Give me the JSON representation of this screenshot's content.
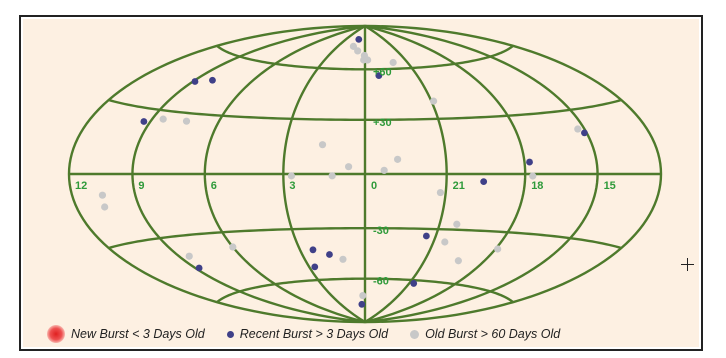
{
  "chart_data": {
    "type": "scatter",
    "projection": "aitoff-hammer",
    "grid_color": "#4e7a2c",
    "label_color": "#2f9a3a",
    "colors": {
      "new": "#e02020",
      "recent": "#3f4088",
      "old": "#c8c8c8"
    },
    "ra_tick_labels": [
      {
        "text": "12",
        "ra_h": 12
      },
      {
        "text": "9",
        "ra_h": 9
      },
      {
        "text": "6",
        "ra_h": 6
      },
      {
        "text": "3",
        "ra_h": 3
      },
      {
        "text": "0",
        "ra_h": 0
      },
      {
        "text": "21",
        "ra_h": 21
      },
      {
        "text": "18",
        "ra_h": 18
      },
      {
        "text": "15",
        "ra_h": 15
      }
    ],
    "dec_tick_labels": [
      {
        "text": "+60",
        "dec": 60
      },
      {
        "text": "+30",
        "dec": 30
      },
      {
        "text": "-30",
        "dec": -30
      },
      {
        "text": "-60",
        "dec": -60
      }
    ],
    "series": [
      {
        "name": "Recent Burst > 3 Days Old",
        "points": [
          {
            "ra": 1.0,
            "dec": 80
          },
          {
            "ra": 23.2,
            "dec": 56
          },
          {
            "ra": 8.9,
            "dec": 45
          },
          {
            "ra": 8.1,
            "dec": 47
          },
          {
            "ra": 9.3,
            "dec": 24
          },
          {
            "ra": 15.1,
            "dec": 19
          },
          {
            "ra": 17.8,
            "dec": 6
          },
          {
            "ra": 19.6,
            "dec": -4
          },
          {
            "ra": 21.4,
            "dec": -34
          },
          {
            "ra": 20.7,
            "dec": -62
          },
          {
            "ra": 2.4,
            "dec": -42
          },
          {
            "ra": 2.7,
            "dec": -52
          },
          {
            "ra": 1.7,
            "dec": -45
          },
          {
            "ra": 8.8,
            "dec": -46
          },
          {
            "ra": 0.4,
            "dec": -77
          }
        ]
      },
      {
        "name": "Old Burst > 60 Days Old",
        "points": [
          {
            "ra": 1.3,
            "dec": 75
          },
          {
            "ra": 0.7,
            "dec": 72
          },
          {
            "ra": 0.1,
            "dec": 66
          },
          {
            "ra": 23.8,
            "dec": 66
          },
          {
            "ra": 0.05,
            "dec": 69
          },
          {
            "ra": 22.0,
            "dec": 64
          },
          {
            "ra": 20.9,
            "dec": 40
          },
          {
            "ra": 8.5,
            "dec": 26
          },
          {
            "ra": 7.4,
            "dec": 26
          },
          {
            "ra": 15.3,
            "dec": 21
          },
          {
            "ra": 1.6,
            "dec": 16
          },
          {
            "ra": 22.8,
            "dec": 8
          },
          {
            "ra": 0.6,
            "dec": 4
          },
          {
            "ra": 23.3,
            "dec": 2
          },
          {
            "ra": 1.2,
            "dec": -1
          },
          {
            "ra": 2.7,
            "dec": -1
          },
          {
            "ra": 17.7,
            "dec": -1
          },
          {
            "ra": 10.5,
            "dec": -9
          },
          {
            "ra": 10.6,
            "dec": -14
          },
          {
            "ra": 21.2,
            "dec": -10
          },
          {
            "ra": 20.3,
            "dec": -27
          },
          {
            "ra": 6.0,
            "dec": -38
          },
          {
            "ra": 8.5,
            "dec": -40
          },
          {
            "ra": 20.5,
            "dec": -37
          },
          {
            "ra": 19.3,
            "dec": -47
          },
          {
            "ra": 17.9,
            "dec": -39
          },
          {
            "ra": 0.2,
            "dec": -71
          },
          {
            "ra": 1.1,
            "dec": -48
          }
        ]
      }
    ]
  },
  "legend": {
    "new_label": "New Burst < 3 Days Old",
    "recent_label": "Recent Burst > 3 Days Old",
    "old_label": "Old Burst > 60 Days Old"
  }
}
